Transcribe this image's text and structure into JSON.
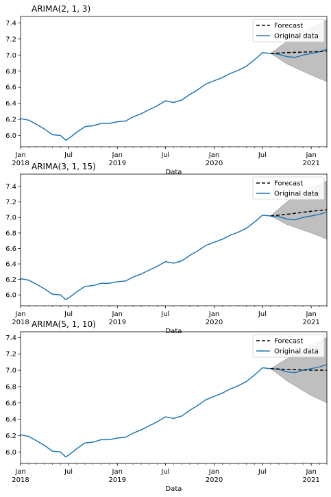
{
  "chart_data": [
    {
      "type": "line",
      "title": "ARIMA(2, 1, 3)",
      "xlabel": "Data",
      "ylabel": "",
      "ylim": [
        5.86,
        7.48
      ],
      "y_ticks": [
        6.0,
        6.2,
        6.4,
        6.6,
        6.8,
        7.0,
        7.2,
        7.4
      ],
      "x_range": [
        "2018-01-01",
        "2021-03-01"
      ],
      "x_ticks": [
        {
          "date": "2018-01-01",
          "label": "Jan",
          "year": "2018"
        },
        {
          "date": "2018-07-01",
          "label": "Jul",
          "year": ""
        },
        {
          "date": "2019-01-01",
          "label": "Jan",
          "year": "2019"
        },
        {
          "date": "2019-07-01",
          "label": "Jul",
          "year": ""
        },
        {
          "date": "2020-01-01",
          "label": "Jan",
          "year": "2020"
        },
        {
          "date": "2020-07-01",
          "label": "Jul",
          "year": ""
        },
        {
          "date": "2021-01-01",
          "label": "Jan",
          "year": "2021"
        }
      ],
      "legend": {
        "position": "top-right",
        "entries": [
          "Forecast",
          "Original data"
        ]
      },
      "series": [
        {
          "name": "Original data",
          "color": "#1f77b4",
          "style": "solid",
          "points": [
            [
              "2018-01-01",
              6.21
            ],
            [
              "2018-02-01",
              6.19
            ],
            [
              "2018-03-01",
              6.14
            ],
            [
              "2018-04-01",
              6.08
            ],
            [
              "2018-05-01",
              6.01
            ],
            [
              "2018-06-01",
              6.0
            ],
            [
              "2018-06-20",
              5.94
            ],
            [
              "2018-07-05",
              5.97
            ],
            [
              "2018-08-01",
              6.04
            ],
            [
              "2018-09-01",
              6.11
            ],
            [
              "2018-10-01",
              6.12
            ],
            [
              "2018-11-01",
              6.15
            ],
            [
              "2018-12-01",
              6.15
            ],
            [
              "2019-01-01",
              6.17
            ],
            [
              "2019-02-01",
              6.18
            ],
            [
              "2019-03-01",
              6.23
            ],
            [
              "2019-04-01",
              6.27
            ],
            [
              "2019-05-01",
              6.32
            ],
            [
              "2019-06-01",
              6.37
            ],
            [
              "2019-07-01",
              6.43
            ],
            [
              "2019-08-01",
              6.41
            ],
            [
              "2019-09-01",
              6.44
            ],
            [
              "2019-10-01",
              6.51
            ],
            [
              "2019-11-01",
              6.57
            ],
            [
              "2019-12-01",
              6.64
            ],
            [
              "2020-01-01",
              6.68
            ],
            [
              "2020-02-01",
              6.72
            ],
            [
              "2020-03-01",
              6.77
            ],
            [
              "2020-04-01",
              6.81
            ],
            [
              "2020-05-01",
              6.86
            ],
            [
              "2020-06-01",
              6.94
            ],
            [
              "2020-07-01",
              7.03
            ],
            [
              "2020-08-01",
              7.02
            ],
            [
              "2020-09-01",
              7.01
            ],
            [
              "2020-10-01",
              6.98
            ],
            [
              "2020-11-01",
              6.97
            ],
            [
              "2020-12-01",
              7.0
            ],
            [
              "2021-01-01",
              7.02
            ],
            [
              "2021-02-01",
              7.04
            ],
            [
              "2021-03-01",
              7.07
            ]
          ]
        },
        {
          "name": "Forecast",
          "color": "#000000",
          "style": "dashed",
          "points": [
            [
              "2020-08-01",
              7.02
            ],
            [
              "2020-10-01",
              7.03
            ],
            [
              "2021-01-01",
              7.04
            ],
            [
              "2021-03-01",
              7.05
            ]
          ]
        }
      ],
      "confidence_band": {
        "upper": [
          [
            "2020-08-01",
            7.02
          ],
          [
            "2020-10-01",
            7.17
          ],
          [
            "2021-01-01",
            7.34
          ],
          [
            "2021-03-01",
            7.44
          ]
        ],
        "lower": [
          [
            "2020-08-01",
            7.02
          ],
          [
            "2020-10-01",
            6.89
          ],
          [
            "2021-01-01",
            6.75
          ],
          [
            "2021-03-01",
            6.67
          ]
        ],
        "color": "#bfbfbf"
      }
    },
    {
      "type": "line",
      "title": "ARIMA(3, 1, 15)",
      "xlabel": "Data",
      "ylabel": "",
      "ylim": [
        5.86,
        7.56
      ],
      "y_ticks": [
        6.0,
        6.2,
        6.4,
        6.6,
        6.8,
        7.0,
        7.2,
        7.4
      ],
      "x_range": [
        "2018-01-01",
        "2021-03-01"
      ],
      "x_ticks": [
        {
          "date": "2018-01-01",
          "label": "Jan",
          "year": "2018"
        },
        {
          "date": "2018-07-01",
          "label": "Jul",
          "year": ""
        },
        {
          "date": "2019-01-01",
          "label": "Jan",
          "year": "2019"
        },
        {
          "date": "2019-07-01",
          "label": "Jul",
          "year": ""
        },
        {
          "date": "2020-01-01",
          "label": "Jan",
          "year": "2020"
        },
        {
          "date": "2020-07-01",
          "label": "Jul",
          "year": ""
        },
        {
          "date": "2021-01-01",
          "label": "Jan",
          "year": "2021"
        }
      ],
      "legend": {
        "position": "top-right",
        "entries": [
          "Forecast",
          "Original data"
        ]
      },
      "series": [
        {
          "name": "Original data",
          "color": "#1f77b4",
          "style": "solid",
          "points": [
            [
              "2018-01-01",
              6.21
            ],
            [
              "2018-02-01",
              6.19
            ],
            [
              "2018-03-01",
              6.14
            ],
            [
              "2018-04-01",
              6.08
            ],
            [
              "2018-05-01",
              6.01
            ],
            [
              "2018-06-01",
              6.0
            ],
            [
              "2018-06-20",
              5.94
            ],
            [
              "2018-07-05",
              5.97
            ],
            [
              "2018-08-01",
              6.04
            ],
            [
              "2018-09-01",
              6.11
            ],
            [
              "2018-10-01",
              6.12
            ],
            [
              "2018-11-01",
              6.15
            ],
            [
              "2018-12-01",
              6.15
            ],
            [
              "2019-01-01",
              6.17
            ],
            [
              "2019-02-01",
              6.18
            ],
            [
              "2019-03-01",
              6.23
            ],
            [
              "2019-04-01",
              6.27
            ],
            [
              "2019-05-01",
              6.32
            ],
            [
              "2019-06-01",
              6.37
            ],
            [
              "2019-07-01",
              6.43
            ],
            [
              "2019-08-01",
              6.41
            ],
            [
              "2019-09-01",
              6.44
            ],
            [
              "2019-10-01",
              6.51
            ],
            [
              "2019-11-01",
              6.57
            ],
            [
              "2019-12-01",
              6.64
            ],
            [
              "2020-01-01",
              6.68
            ],
            [
              "2020-02-01",
              6.72
            ],
            [
              "2020-03-01",
              6.77
            ],
            [
              "2020-04-01",
              6.81
            ],
            [
              "2020-05-01",
              6.86
            ],
            [
              "2020-06-01",
              6.94
            ],
            [
              "2020-07-01",
              7.03
            ],
            [
              "2020-08-01",
              7.02
            ],
            [
              "2020-09-01",
              7.01
            ],
            [
              "2020-10-01",
              6.98
            ],
            [
              "2020-11-01",
              6.97
            ],
            [
              "2020-12-01",
              7.0
            ],
            [
              "2021-01-01",
              7.02
            ],
            [
              "2021-02-01",
              7.04
            ],
            [
              "2021-03-01",
              7.07
            ]
          ]
        },
        {
          "name": "Forecast",
          "color": "#000000",
          "style": "dashed",
          "points": [
            [
              "2020-08-01",
              7.02
            ],
            [
              "2020-10-01",
              7.04
            ],
            [
              "2021-01-01",
              7.08
            ],
            [
              "2021-03-01",
              7.1
            ]
          ]
        }
      ],
      "confidence_band": {
        "upper": [
          [
            "2020-08-01",
            7.02
          ],
          [
            "2020-10-01",
            7.2
          ],
          [
            "2021-01-01",
            7.39
          ],
          [
            "2021-03-01",
            7.47
          ]
        ],
        "lower": [
          [
            "2020-08-01",
            7.02
          ],
          [
            "2020-10-01",
            6.91
          ],
          [
            "2021-01-01",
            6.8
          ],
          [
            "2021-03-01",
            6.72
          ]
        ],
        "color": "#bfbfbf"
      }
    },
    {
      "type": "line",
      "title": "ARIMA(5, 1, 10)",
      "xlabel": "Data",
      "ylabel": "",
      "ylim": [
        5.86,
        7.47
      ],
      "y_ticks": [
        6.0,
        6.2,
        6.4,
        6.6,
        6.8,
        7.0,
        7.2,
        7.4
      ],
      "x_range": [
        "2018-01-01",
        "2021-03-01"
      ],
      "x_ticks": [
        {
          "date": "2018-01-01",
          "label": "Jan",
          "year": "2018"
        },
        {
          "date": "2018-07-01",
          "label": "Jul",
          "year": ""
        },
        {
          "date": "2019-01-01",
          "label": "Jan",
          "year": "2019"
        },
        {
          "date": "2019-07-01",
          "label": "Jul",
          "year": ""
        },
        {
          "date": "2020-01-01",
          "label": "Jan",
          "year": "2020"
        },
        {
          "date": "2020-07-01",
          "label": "Jul",
          "year": ""
        },
        {
          "date": "2021-01-01",
          "label": "Jan",
          "year": "2021"
        }
      ],
      "legend": {
        "position": "top-right",
        "entries": [
          "Forecast",
          "Original data"
        ]
      },
      "series": [
        {
          "name": "Original data",
          "color": "#1f77b4",
          "style": "solid",
          "points": [
            [
              "2018-01-01",
              6.21
            ],
            [
              "2018-02-01",
              6.19
            ],
            [
              "2018-03-01",
              6.14
            ],
            [
              "2018-04-01",
              6.08
            ],
            [
              "2018-05-01",
              6.01
            ],
            [
              "2018-06-01",
              6.0
            ],
            [
              "2018-06-20",
              5.94
            ],
            [
              "2018-07-05",
              5.97
            ],
            [
              "2018-08-01",
              6.04
            ],
            [
              "2018-09-01",
              6.11
            ],
            [
              "2018-10-01",
              6.12
            ],
            [
              "2018-11-01",
              6.15
            ],
            [
              "2018-12-01",
              6.15
            ],
            [
              "2019-01-01",
              6.17
            ],
            [
              "2019-02-01",
              6.18
            ],
            [
              "2019-03-01",
              6.23
            ],
            [
              "2019-04-01",
              6.27
            ],
            [
              "2019-05-01",
              6.32
            ],
            [
              "2019-06-01",
              6.37
            ],
            [
              "2019-07-01",
              6.43
            ],
            [
              "2019-08-01",
              6.41
            ],
            [
              "2019-09-01",
              6.44
            ],
            [
              "2019-10-01",
              6.51
            ],
            [
              "2019-11-01",
              6.57
            ],
            [
              "2019-12-01",
              6.64
            ],
            [
              "2020-01-01",
              6.68
            ],
            [
              "2020-02-01",
              6.72
            ],
            [
              "2020-03-01",
              6.77
            ],
            [
              "2020-04-01",
              6.81
            ],
            [
              "2020-05-01",
              6.86
            ],
            [
              "2020-06-01",
              6.94
            ],
            [
              "2020-07-01",
              7.03
            ],
            [
              "2020-08-01",
              7.02
            ],
            [
              "2020-09-01",
              7.01
            ],
            [
              "2020-10-01",
              6.98
            ],
            [
              "2020-11-01",
              6.97
            ],
            [
              "2020-12-01",
              7.0
            ],
            [
              "2021-01-01",
              7.02
            ],
            [
              "2021-02-01",
              7.04
            ],
            [
              "2021-03-01",
              7.07
            ]
          ]
        },
        {
          "name": "Forecast",
          "color": "#000000",
          "style": "dashed",
          "points": [
            [
              "2020-08-01",
              7.02
            ],
            [
              "2020-10-01",
              7.01
            ],
            [
              "2021-01-01",
              7.0
            ],
            [
              "2021-03-01",
              7.0
            ]
          ]
        }
      ],
      "confidence_band": {
        "upper": [
          [
            "2020-08-01",
            7.02
          ],
          [
            "2020-10-01",
            7.14
          ],
          [
            "2021-01-01",
            7.31
          ],
          [
            "2021-03-01",
            7.4
          ]
        ],
        "lower": [
          [
            "2020-08-01",
            7.02
          ],
          [
            "2020-10-01",
            6.87
          ],
          [
            "2021-01-01",
            6.69
          ],
          [
            "2021-03-01",
            6.6
          ]
        ],
        "color": "#bfbfbf"
      }
    }
  ]
}
